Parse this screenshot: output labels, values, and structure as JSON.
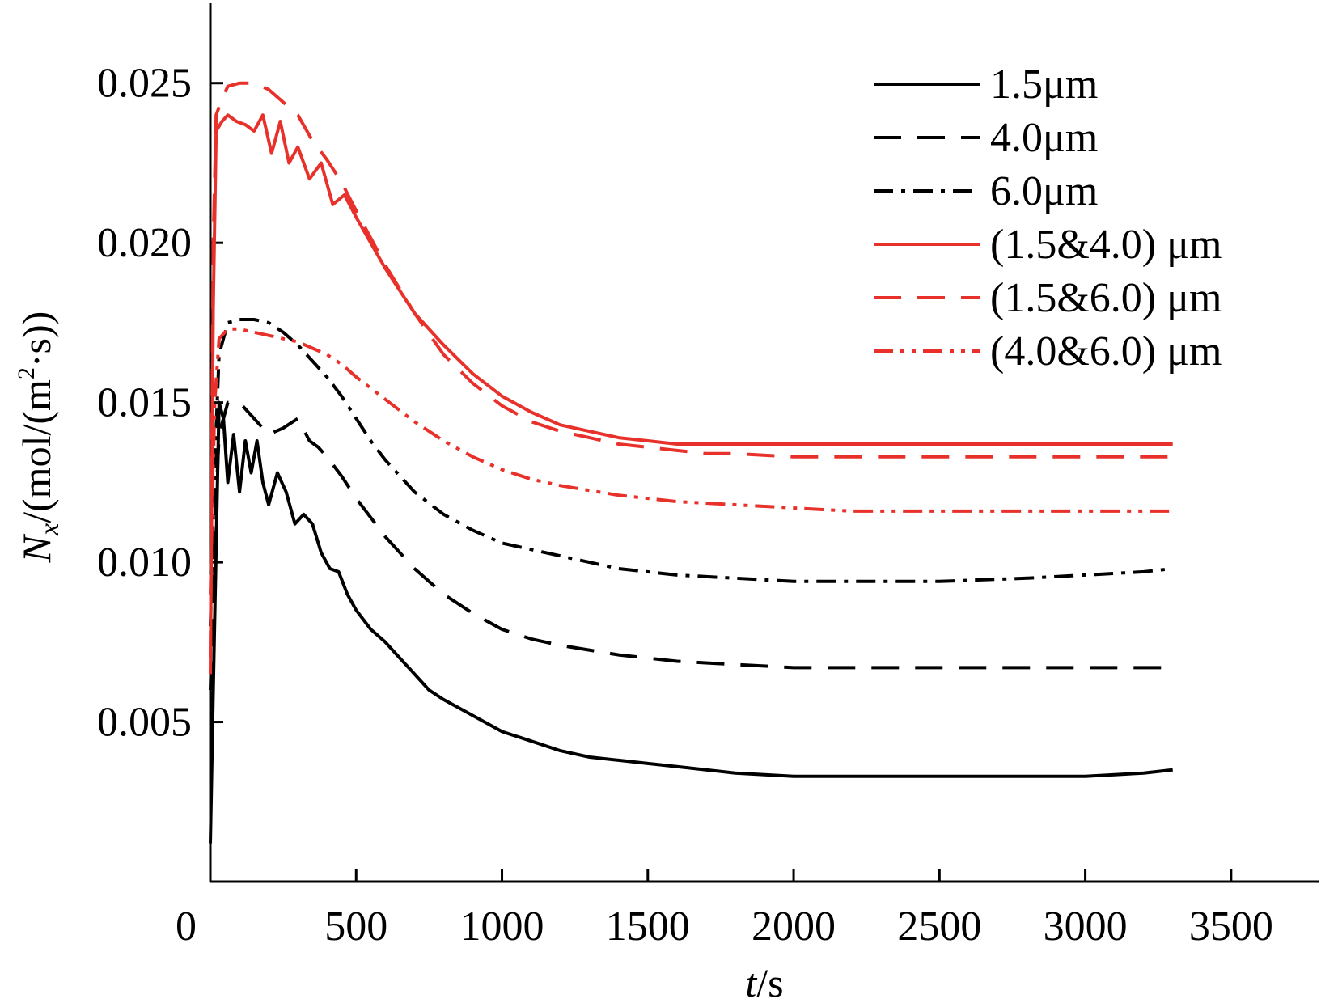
{
  "chart_data": {
    "type": "line",
    "title": "",
    "xlabel": "t/s",
    "ylabel": "N_x/(mol/(m^2·s))",
    "xlabel_parts": {
      "var": "t",
      "unit": "/s"
    },
    "ylabel_parts": {
      "var": "N",
      "sub": "x",
      "unit_a": "/(mol/(m",
      "sup": "2",
      "unit_b": "·s))"
    },
    "xlim": [
      0,
      3800
    ],
    "ylim": [
      0,
      0.0275
    ],
    "xticks": [
      0,
      500,
      1000,
      1500,
      2000,
      2500,
      3000,
      3500
    ],
    "xtick_labels": [
      "0",
      "500",
      "1000",
      "1500",
      "2000",
      "2500",
      "3000",
      "3500"
    ],
    "yticks": [
      0.005,
      0.01,
      0.015,
      0.02,
      0.025
    ],
    "ytick_labels": [
      "0.005",
      "0.010",
      "0.015",
      "0.020",
      "0.025"
    ],
    "grid": false,
    "legend_position": "top-right",
    "series": [
      {
        "name": "1.5μm",
        "color": "#000000",
        "style": "solid",
        "x": [
          0,
          10,
          20,
          30,
          45,
          60,
          80,
          100,
          120,
          140,
          160,
          180,
          200,
          230,
          260,
          290,
          320,
          350,
          380,
          410,
          440,
          470,
          500,
          550,
          600,
          650,
          700,
          750,
          800,
          900,
          1000,
          1100,
          1200,
          1300,
          1400,
          1500,
          1600,
          1700,
          1800,
          2000,
          2200,
          2500,
          2800,
          3000,
          3200,
          3300
        ],
        "values": [
          0.0012,
          0.006,
          0.0105,
          0.015,
          0.0145,
          0.0125,
          0.014,
          0.0122,
          0.0138,
          0.0128,
          0.0138,
          0.0125,
          0.0118,
          0.0128,
          0.0122,
          0.0112,
          0.0115,
          0.0112,
          0.0103,
          0.0098,
          0.0097,
          0.009,
          0.0085,
          0.0079,
          0.0075,
          0.007,
          0.0065,
          0.006,
          0.0057,
          0.0052,
          0.0047,
          0.0044,
          0.0041,
          0.0039,
          0.0038,
          0.0037,
          0.0036,
          0.0035,
          0.0034,
          0.0033,
          0.0033,
          0.0033,
          0.0033,
          0.0033,
          0.0034,
          0.0035
        ]
      },
      {
        "name": "4.0μm",
        "color": "#000000",
        "style": "dashed",
        "x": [
          0,
          15,
          30,
          60,
          100,
          150,
          200,
          250,
          300,
          340,
          370,
          400,
          450,
          500,
          600,
          700,
          800,
          900,
          1000,
          1100,
          1200,
          1400,
          1600,
          1800,
          2000,
          2200,
          2500,
          2800,
          3000,
          3200,
          3300
        ],
        "values": [
          0.006,
          0.011,
          0.014,
          0.015,
          0.015,
          0.0145,
          0.014,
          0.0142,
          0.0145,
          0.0138,
          0.0136,
          0.0133,
          0.0127,
          0.012,
          0.0108,
          0.0098,
          0.009,
          0.0084,
          0.0079,
          0.0076,
          0.0074,
          0.0071,
          0.0069,
          0.0068,
          0.0067,
          0.0067,
          0.0067,
          0.0067,
          0.0067,
          0.0067,
          0.0067
        ]
      },
      {
        "name": "6.0μm",
        "color": "#000000",
        "style": "dashdot",
        "x": [
          0,
          15,
          30,
          60,
          100,
          150,
          200,
          250,
          300,
          350,
          400,
          450,
          500,
          550,
          600,
          700,
          800,
          900,
          1000,
          1200,
          1400,
          1600,
          1800,
          2000,
          2200,
          2500,
          2800,
          3000,
          3200,
          3300
        ],
        "values": [
          0.008,
          0.013,
          0.0165,
          0.0175,
          0.0176,
          0.0176,
          0.0175,
          0.0172,
          0.0168,
          0.0163,
          0.0158,
          0.0152,
          0.0145,
          0.0138,
          0.0132,
          0.0122,
          0.0115,
          0.011,
          0.0106,
          0.0102,
          0.0098,
          0.0096,
          0.0095,
          0.0094,
          0.0094,
          0.0094,
          0.0095,
          0.0096,
          0.0097,
          0.0098
        ]
      },
      {
        "name": "(1.5&4.0) μm",
        "color": "#e8312a",
        "style": "solid",
        "x": [
          0,
          10,
          20,
          40,
          60,
          90,
          120,
          150,
          180,
          210,
          240,
          270,
          300,
          340,
          380,
          420,
          460,
          500,
          550,
          600,
          700,
          800,
          900,
          1000,
          1100,
          1200,
          1300,
          1400,
          1500,
          1600,
          1700,
          1800,
          2000,
          2200,
          2500,
          2800,
          3000,
          3200,
          3300
        ],
        "values": [
          0.0065,
          0.018,
          0.0235,
          0.0238,
          0.024,
          0.0238,
          0.0237,
          0.0235,
          0.024,
          0.0228,
          0.0238,
          0.0225,
          0.023,
          0.022,
          0.0225,
          0.0212,
          0.0215,
          0.0208,
          0.02,
          0.0192,
          0.0178,
          0.0168,
          0.0159,
          0.0152,
          0.0147,
          0.0143,
          0.0141,
          0.0139,
          0.0138,
          0.0137,
          0.0137,
          0.0137,
          0.0137,
          0.0137,
          0.0137,
          0.0137,
          0.0137,
          0.0137,
          0.0137
        ]
      },
      {
        "name": "(1.5&6.0) μm",
        "color": "#e8312a",
        "style": "dashed",
        "x": [
          0,
          10,
          20,
          40,
          60,
          100,
          150,
          200,
          250,
          300,
          350,
          400,
          450,
          500,
          600,
          700,
          800,
          900,
          1000,
          1100,
          1200,
          1300,
          1400,
          1500,
          1600,
          1700,
          1800,
          2000,
          2200,
          2500,
          2800,
          3000,
          3200,
          3300
        ],
        "values": [
          0.007,
          0.02,
          0.024,
          0.0245,
          0.0249,
          0.025,
          0.025,
          0.0248,
          0.0244,
          0.024,
          0.0232,
          0.0226,
          0.0219,
          0.021,
          0.0193,
          0.0178,
          0.0165,
          0.0156,
          0.0149,
          0.0144,
          0.0141,
          0.0139,
          0.0137,
          0.0136,
          0.0135,
          0.0134,
          0.0134,
          0.0133,
          0.0133,
          0.0133,
          0.0133,
          0.0133,
          0.0133,
          0.0133
        ]
      },
      {
        "name": "(4.0&6.0) μm",
        "color": "#e8312a",
        "style": "dashdotdot",
        "x": [
          0,
          15,
          30,
          60,
          100,
          150,
          200,
          250,
          300,
          350,
          400,
          450,
          500,
          600,
          700,
          800,
          900,
          1000,
          1100,
          1200,
          1400,
          1600,
          1800,
          2000,
          2200,
          2500,
          2800,
          3000,
          3200,
          3300
        ],
        "values": [
          0.009,
          0.015,
          0.017,
          0.0173,
          0.0173,
          0.0172,
          0.0171,
          0.017,
          0.0169,
          0.0167,
          0.0165,
          0.0162,
          0.0158,
          0.0151,
          0.0144,
          0.0138,
          0.0133,
          0.0129,
          0.0126,
          0.0124,
          0.0121,
          0.0119,
          0.0118,
          0.0117,
          0.0116,
          0.0116,
          0.0116,
          0.0116,
          0.0116,
          0.0116
        ]
      }
    ]
  }
}
